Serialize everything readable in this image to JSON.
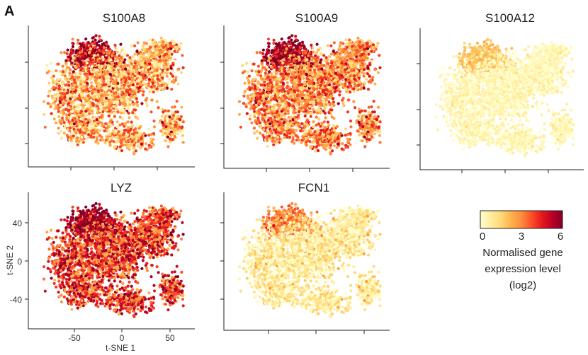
{
  "figure": {
    "panel_letter": "A"
  },
  "chart_data": [
    {
      "type": "scatter",
      "title": "S100A8",
      "xlabel": "",
      "ylabel": "",
      "xlim": [
        -85,
        75
      ],
      "ylim": [
        -70,
        65
      ],
      "grid": false,
      "expression_pattern": "moderate-high, highest in upper-left cluster",
      "color_scale": "YlOrRd"
    },
    {
      "type": "scatter",
      "title": "S100A9",
      "xlabel": "",
      "ylabel": "",
      "xlim": [
        -85,
        75
      ],
      "ylim": [
        -70,
        65
      ],
      "grid": false,
      "expression_pattern": "high across most cells, highest in upper-left cluster",
      "color_scale": "YlOrRd"
    },
    {
      "type": "scatter",
      "title": "S100A12",
      "xlabel": "",
      "ylabel": "",
      "xlim": [
        -85,
        75
      ],
      "ylim": [
        -70,
        65
      ],
      "grid": false,
      "expression_pattern": "low overall, slightly elevated in upper-left cluster",
      "color_scale": "YlOrRd"
    },
    {
      "type": "scatter",
      "title": "LYZ",
      "xlabel": "t-SNE 1",
      "ylabel": "t-SNE 2",
      "xlim": [
        -85,
        75
      ],
      "ylim": [
        -70,
        65
      ],
      "xticks": [
        -50,
        0,
        50
      ],
      "yticks": [
        40,
        0,
        -40
      ],
      "grid": false,
      "expression_pattern": "very high across most cells",
      "color_scale": "YlOrRd"
    },
    {
      "type": "scatter",
      "title": "FCN1",
      "xlabel": "",
      "ylabel": "",
      "xlim": [
        -85,
        75
      ],
      "ylim": [
        -70,
        65
      ],
      "grid": false,
      "expression_pattern": "low-moderate, elevated in upper-left cluster",
      "color_scale": "YlOrRd"
    }
  ],
  "legend": {
    "ticks": [
      "0",
      "3",
      "6"
    ],
    "min": 0,
    "max": 6,
    "colors": [
      "#ffffcc",
      "#ffeda0",
      "#fed976",
      "#feb24c",
      "#fd8d3c",
      "#fc4e2a",
      "#e31a1c",
      "#bd0026",
      "#800026"
    ],
    "label_line1": "Normalised gene",
    "label_line2": "expression level",
    "label_line3": "(log2)"
  }
}
